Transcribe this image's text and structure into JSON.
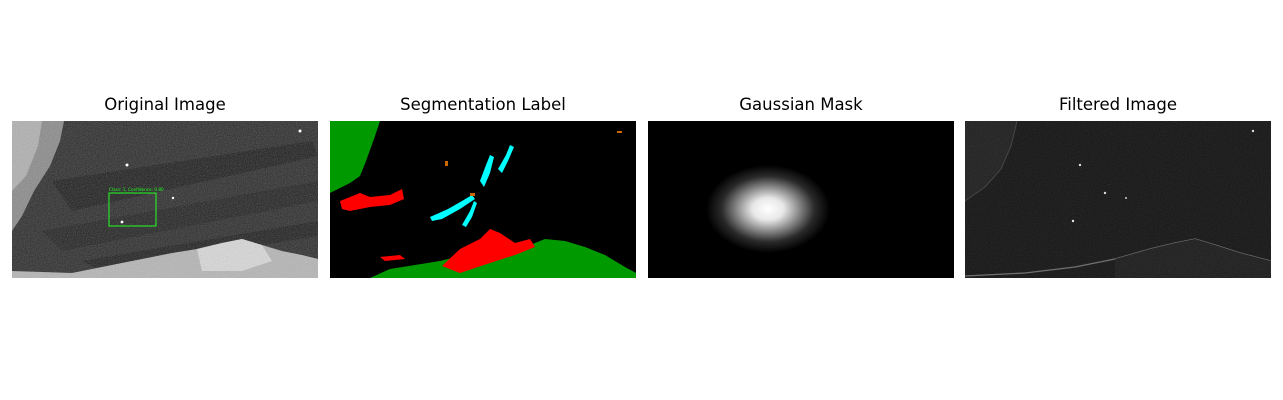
{
  "panels": [
    {
      "title": "Original Image"
    },
    {
      "title": "Segmentation Label"
    },
    {
      "title": "Gaussian Mask"
    },
    {
      "title": "Filtered Image"
    }
  ],
  "detection": {
    "label": "Class: 1, Confidence: 0.80",
    "box_color": "#22ff22"
  },
  "segmentation_colors": {
    "background": "#000000",
    "land": "#009900",
    "oil_spill": "#ff0000",
    "look_alike": "#00ffff",
    "ship": "#cc6600"
  }
}
